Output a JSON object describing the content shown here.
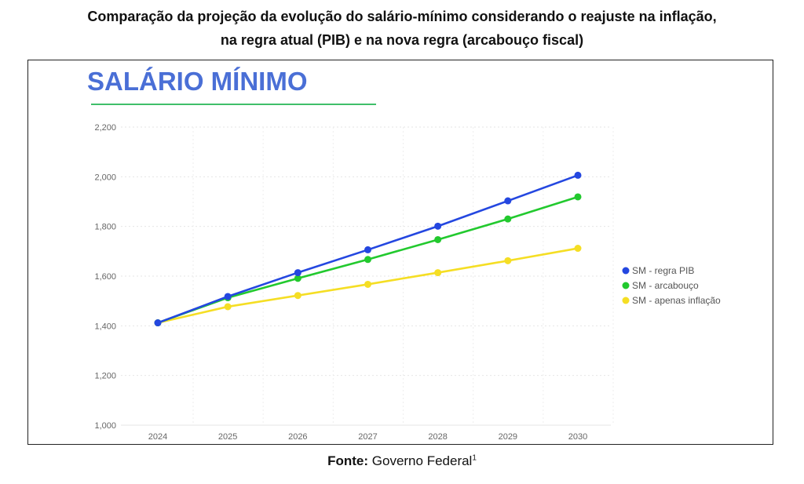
{
  "header": {
    "title_line1": "Comparação da projeção da evolução do salário-mínimo considerando o reajuste na inflação,",
    "title_line2": "na regra atual (PIB) e na nova regra (arcabouço fiscal)"
  },
  "footer": {
    "source_label": "Fonte:",
    "source_value": "Governo Federal",
    "footnote_marker": "1"
  },
  "chart_data": {
    "type": "line",
    "title": "SALÁRIO MÍNIMO",
    "xlabel": "",
    "ylabel": "",
    "x": [
      "2024",
      "2025",
      "2026",
      "2027",
      "2028",
      "2029",
      "2030"
    ],
    "ylim": [
      1000,
      2200
    ],
    "yticks": [
      1000,
      1200,
      1400,
      1600,
      1800,
      2000,
      2200
    ],
    "ytick_labels": [
      "1,000",
      "1,200",
      "1,400",
      "1,600",
      "1,800",
      "2,000",
      "2,200"
    ],
    "grid": true,
    "legend_position": "right",
    "series": [
      {
        "name": "SM - regra PIB",
        "color": "#2447e0",
        "values": [
          1412,
          1518,
          1614,
          1706,
          1801,
          1903,
          2006
        ]
      },
      {
        "name": "SM - arcabouço",
        "color": "#22c92e",
        "values": [
          1412,
          1513,
          1591,
          1667,
          1747,
          1830,
          1919
        ]
      },
      {
        "name": "SM - apenas inflação",
        "color": "#f5de24",
        "values": [
          1412,
          1477,
          1522,
          1567,
          1614,
          1662,
          1712
        ]
      }
    ],
    "title_color": "#4a6fd6",
    "title_underline_color": "#3fbf6a"
  }
}
